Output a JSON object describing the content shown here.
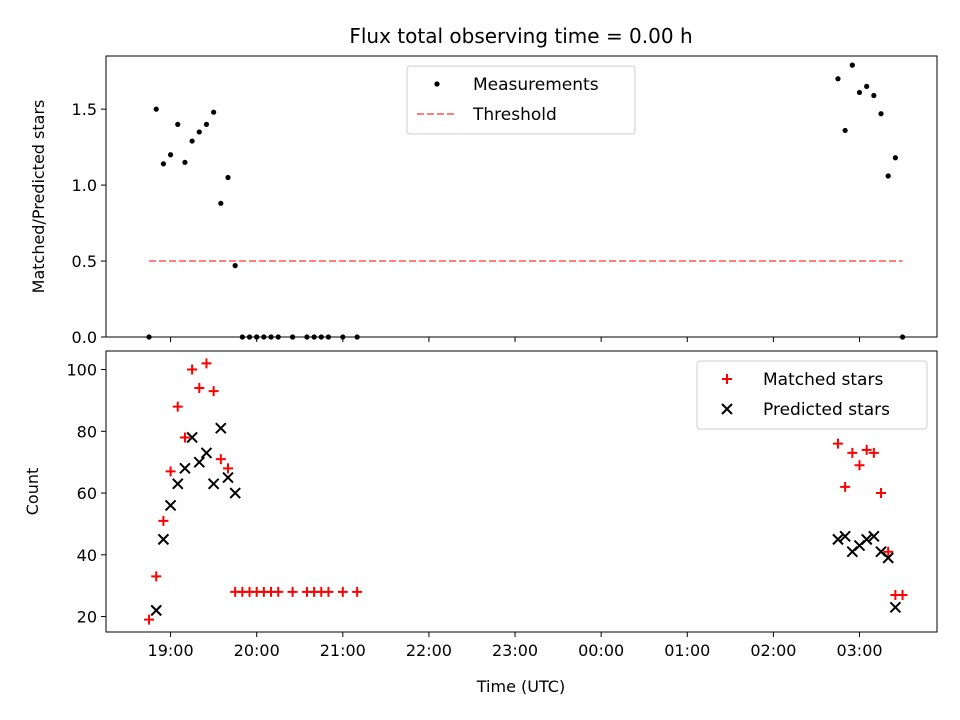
{
  "chart_data": {
    "title": "Flux total observing time = 0.00 h",
    "xlabel": "Time (UTC)",
    "x_ticks": [
      "19:00",
      "20:00",
      "21:00",
      "22:00",
      "23:00",
      "00:00",
      "01:00",
      "02:00",
      "03:00"
    ],
    "x_tick_hours": [
      19,
      20,
      21,
      22,
      23,
      24,
      25,
      26,
      27
    ],
    "xlim_hours": [
      18.25,
      27.9
    ],
    "panels": [
      {
        "type": "scatter",
        "ylabel": "Matched/Predicted stars",
        "ylim": [
          0,
          1.85
        ],
        "y_ticks": [
          0.0,
          0.5,
          1.0,
          1.5
        ],
        "legend_position": "top-center",
        "series": [
          {
            "name": "Measurements",
            "marker": "dot",
            "color": "#000000",
            "x": [
              "18:45",
              "18:50",
              "18:55",
              "19:00",
              "19:05",
              "19:10",
              "19:15",
              "19:20",
              "19:25",
              "19:30",
              "19:35",
              "19:40",
              "19:45",
              "19:50",
              "19:55",
              "20:00",
              "20:05",
              "20:10",
              "20:15",
              "20:25",
              "20:35",
              "20:40",
              "20:45",
              "20:50",
              "21:00",
              "21:10",
              "02:45",
              "02:50",
              "02:55",
              "03:00",
              "03:05",
              "03:10",
              "03:15",
              "03:20",
              "03:25",
              "03:30"
            ],
            "y": [
              0.0,
              1.5,
              1.14,
              1.2,
              1.4,
              1.15,
              1.29,
              1.35,
              1.4,
              1.48,
              0.88,
              1.05,
              0.47,
              0.0,
              0.0,
              0.0,
              0.0,
              0.0,
              0.0,
              0.0,
              0.0,
              0.0,
              0.0,
              0.0,
              0.0,
              0.0,
              1.7,
              1.36,
              1.79,
              1.61,
              1.65,
              1.59,
              1.47,
              1.06,
              1.18,
              0.0
            ]
          },
          {
            "name": "Threshold",
            "line_style": "dashed",
            "color": "#ff7f7f",
            "x": [
              "18:45",
              "03:30"
            ],
            "y": [
              0.5,
              0.5
            ]
          }
        ]
      },
      {
        "type": "scatter",
        "ylabel": "Count",
        "ylim": [
          15,
          106
        ],
        "y_ticks": [
          20,
          40,
          60,
          80,
          100
        ],
        "legend_position": "top-right",
        "series": [
          {
            "name": "Matched stars",
            "marker": "plus",
            "color": "#ff0000",
            "x": [
              "18:45",
              "18:50",
              "18:55",
              "19:00",
              "19:05",
              "19:10",
              "19:15",
              "19:20",
              "19:25",
              "19:30",
              "19:35",
              "19:40",
              "19:45",
              "19:50",
              "19:55",
              "20:00",
              "20:05",
              "20:10",
              "20:15",
              "20:25",
              "20:35",
              "20:40",
              "20:45",
              "20:50",
              "21:00",
              "21:10",
              "02:45",
              "02:50",
              "02:55",
              "03:00",
              "03:05",
              "03:10",
              "03:15",
              "03:20",
              "03:25",
              "03:30"
            ],
            "y": [
              19,
              33,
              51,
              67,
              88,
              78,
              100,
              94,
              102,
              93,
              71,
              68,
              28,
              28,
              28,
              28,
              28,
              28,
              28,
              28,
              28,
              28,
              28,
              28,
              28,
              28,
              76,
              62,
              73,
              69,
              74,
              73,
              60,
              41,
              27,
              27
            ]
          },
          {
            "name": "Predicted stars",
            "marker": "x",
            "color": "#000000",
            "x": [
              "18:50",
              "18:55",
              "19:00",
              "19:05",
              "19:10",
              "19:15",
              "19:20",
              "19:25",
              "19:30",
              "19:35",
              "19:40",
              "19:45",
              "02:45",
              "02:50",
              "02:55",
              "03:00",
              "03:05",
              "03:10",
              "03:15",
              "03:20",
              "03:25"
            ],
            "y": [
              22,
              45,
              56,
              63,
              68,
              78,
              70,
              73,
              63,
              81,
              65,
              60,
              45,
              46,
              41,
              43,
              45,
              46,
              41,
              39,
              23
            ]
          }
        ]
      }
    ]
  }
}
